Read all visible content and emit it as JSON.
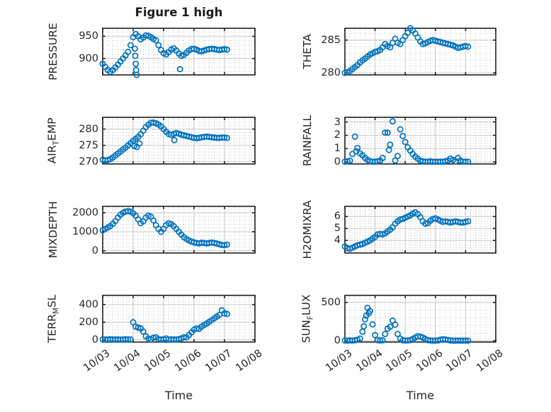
{
  "figure": {
    "title": "Figure 1 high",
    "xlabel": "Time",
    "background": "#ffffff",
    "marker_color": "#0072BD",
    "axis_color": "#202020",
    "major_grid_color": "#cfcfcf",
    "minor_grid_color": "#c9c9c9"
  },
  "x_axis": {
    "tick_labels": [
      "10/03",
      "10/04",
      "10/05",
      "10/06",
      "10/07",
      "10/08"
    ],
    "lim": [
      0,
      5
    ],
    "minor_divisions_per_day": 6
  },
  "chart_data": [
    {
      "id": "pressure",
      "name": "PRESSURE",
      "type": "scatter",
      "ylabel_parts": [
        {
          "text": "PRESSURE",
          "sub": false
        }
      ],
      "yticks": [
        900,
        950
      ],
      "ylim": [
        863,
        968
      ],
      "yminor_step": 10,
      "series": {
        "t_start": 0,
        "t_step": 0.0833,
        "values": [
          888,
          881,
          874,
          870,
          874,
          880,
          886,
          893,
          900,
          907,
          915,
          930,
          948,
          955,
          950,
          943,
          947,
          952,
          951,
          948,
          944,
          941,
          930,
          919,
          912,
          909,
          914,
          920,
          923,
          918,
          911,
          906,
          908,
          913,
          918,
          921,
          922,
          920,
          917,
          916,
          918,
          920,
          921,
          922,
          921,
          920,
          919,
          920,
          921,
          920
        ]
      },
      "outliers": [
        [
          1.055,
          922
        ],
        [
          1.07,
          906
        ],
        [
          1.085,
          888
        ],
        [
          1.1,
          874
        ],
        [
          1.115,
          863
        ],
        [
          2.54,
          876
        ]
      ]
    },
    {
      "id": "theta",
      "name": "THETA",
      "type": "scatter",
      "ylabel_parts": [
        {
          "text": "THETA",
          "sub": false
        }
      ],
      "yticks": [
        280,
        285
      ],
      "ylim": [
        279.7,
        286.8
      ],
      "yminor_step": 1,
      "series": {
        "t_start": 0,
        "t_step": 0.0833,
        "values": [
          280.0,
          280.1,
          280.3,
          280.6,
          280.9,
          281.2,
          281.6,
          281.9,
          282.2,
          282.5,
          282.8,
          283.0,
          283.2,
          283.3,
          283.5,
          283.9,
          284.4,
          284.1,
          283.9,
          284.6,
          285.2,
          284.6,
          284.4,
          285.0,
          285.6,
          286.1,
          286.8,
          286.5,
          286.0,
          285.4,
          284.8,
          284.4,
          284.5,
          284.7,
          284.9,
          285.0,
          284.9,
          284.8,
          284.7,
          284.6,
          284.5,
          284.4,
          284.3,
          284.2,
          284.0,
          283.8,
          283.9,
          284.0,
          284.1,
          284.0
        ]
      },
      "outliers": []
    },
    {
      "id": "air_temp",
      "name": "AIR_TEMP",
      "type": "scatter",
      "ylabel_parts": [
        {
          "text": "AIR",
          "sub": false
        },
        {
          "text": "T",
          "sub": true
        },
        {
          "text": "EMP",
          "sub": false
        }
      ],
      "yticks": [
        270,
        275,
        280
      ],
      "ylim": [
        269.3,
        283.6
      ],
      "yminor_step": 1,
      "series": {
        "t_start": 0,
        "t_step": 0.0833,
        "values": [
          270.6,
          270.4,
          270.5,
          270.8,
          271.3,
          271.9,
          272.5,
          273.1,
          273.7,
          274.3,
          275.0,
          275.7,
          276.4,
          277.0,
          277.6,
          278.4,
          279.5,
          280.6,
          281.3,
          281.9,
          282.0,
          281.8,
          281.4,
          280.8,
          280.0,
          279.2,
          278.5,
          278.2,
          278.5,
          278.8,
          278.6,
          278.3,
          278.1,
          277.9,
          277.7,
          277.5,
          277.3,
          277.2,
          277.3,
          277.5,
          277.6,
          277.7,
          277.6,
          277.5,
          277.4,
          277.3,
          277.3,
          277.4,
          277.4,
          277.3
        ]
      },
      "outliers": [
        [
          1.04,
          274.8
        ],
        [
          1.12,
          274.5
        ],
        [
          1.21,
          275.6
        ],
        [
          2.35,
          276.6
        ]
      ]
    },
    {
      "id": "rainfall",
      "name": "RAINFALL",
      "type": "scatter",
      "ylabel_parts": [
        {
          "text": "RAINFALL",
          "sub": false
        }
      ],
      "yticks": [
        0,
        1,
        2,
        3
      ],
      "ylim": [
        -0.15,
        3.35
      ],
      "yminor_step": 0.2,
      "series": {
        "t_start": 0,
        "t_step": 0.0833,
        "values": [
          0.02,
          0.05,
          0.1,
          0.6,
          1.9,
          1.05,
          0.65,
          0.5,
          0.3,
          0.15,
          0.05,
          0.02,
          0.02,
          0.05,
          0.1,
          0.3,
          2.2,
          2.2,
          1.3,
          3.05,
          0.1,
          0.45,
          2.45,
          1.95,
          1.5,
          1.1,
          0.85,
          0.6,
          0.4,
          0.25,
          0.1,
          0.05,
          0.02,
          0.02,
          0.05,
          0.02,
          0.02,
          0.02,
          0.02,
          0.02,
          0.05,
          0.1,
          0.25,
          0.15,
          0.05,
          0.3,
          0.1,
          0.02,
          0.02,
          0.02
        ]
      },
      "outliers": [
        [
          0.375,
          0.8
        ],
        [
          1.46,
          0.9
        ]
      ]
    },
    {
      "id": "mixdepth",
      "name": "MIXDEPTH",
      "type": "scatter",
      "ylabel_parts": [
        {
          "text": "MIXDEPTH",
          "sub": false
        }
      ],
      "yticks": [
        0,
        1000,
        2000
      ],
      "ylim": [
        -120,
        2340
      ],
      "yminor_step": 200,
      "series": {
        "t_start": 0,
        "t_step": 0.0833,
        "values": [
          1080,
          1150,
          1220,
          1300,
          1420,
          1560,
          1750,
          1900,
          2000,
          2060,
          2090,
          2060,
          1980,
          1850,
          1650,
          1450,
          1550,
          1750,
          1850,
          1800,
          1600,
          1350,
          1150,
          1000,
          1150,
          1350,
          1450,
          1400,
          1300,
          1150,
          1000,
          850,
          720,
          620,
          540,
          480,
          440,
          410,
          390,
          420,
          410,
          390,
          410,
          430,
          410,
          380,
          340,
          300,
          290,
          320
        ]
      },
      "outliers": []
    },
    {
      "id": "h2omixra",
      "name": "H2OMIXRA",
      "type": "scatter",
      "ylabel_parts": [
        {
          "text": "H2OMIXRA",
          "sub": false
        }
      ],
      "yticks": [
        4,
        5,
        6
      ],
      "ylim": [
        2.95,
        6.85
      ],
      "yminor_step": 0.2,
      "series": {
        "t_start": 0,
        "t_step": 0.0833,
        "values": [
          3.5,
          3.35,
          3.3,
          3.4,
          3.5,
          3.6,
          3.65,
          3.7,
          3.8,
          3.9,
          4.0,
          4.15,
          4.3,
          4.5,
          4.55,
          4.5,
          4.6,
          4.75,
          4.9,
          5.1,
          5.4,
          5.6,
          5.75,
          5.8,
          5.9,
          6.0,
          6.1,
          6.25,
          6.35,
          6.2,
          5.95,
          5.6,
          5.4,
          5.45,
          5.65,
          5.8,
          5.85,
          5.75,
          5.65,
          5.55,
          5.6,
          5.55,
          5.5,
          5.55,
          5.6,
          5.55,
          5.5,
          5.5,
          5.55,
          5.6
        ]
      },
      "outliers": []
    },
    {
      "id": "terr_msl",
      "name": "TERR_MSL",
      "type": "scatter",
      "ylabel_parts": [
        {
          "text": "TERR",
          "sub": false
        },
        {
          "text": "M",
          "sub": true
        },
        {
          "text": "SL",
          "sub": false
        }
      ],
      "yticks": [
        0,
        200,
        400
      ],
      "ylim": [
        -25,
        505
      ],
      "yminor_step": 40,
      "series": {
        "t_start": 0,
        "t_step": 0.0833,
        "values": [
          3,
          5,
          2,
          6,
          4,
          3,
          5,
          2,
          4,
          6,
          3,
          5,
          200,
          150,
          140,
          130,
          95,
          40,
          15,
          5,
          25,
          30,
          8,
          4,
          6,
          15,
          3,
          5,
          4,
          3,
          8,
          15,
          30,
          28,
          55,
          85,
          115,
          130,
          125,
          150,
          170,
          185,
          205,
          225,
          245,
          265,
          285,
          335,
          300,
          295
        ]
      },
      "outliers": []
    },
    {
      "id": "sun_flux",
      "name": "SUN_FLUX",
      "type": "scatter",
      "ylabel_parts": [
        {
          "text": "SUN",
          "sub": false
        },
        {
          "text": "F",
          "sub": true
        },
        {
          "text": "LUX",
          "sub": false
        }
      ],
      "yticks": [
        0,
        500
      ],
      "ylim": [
        -15,
        592
      ],
      "yminor_step": 100,
      "series": {
        "t_start": 0,
        "t_step": 0.0833,
        "values": [
          5,
          3,
          6,
          4,
          8,
          15,
          30,
          120,
          280,
          430,
          390,
          215,
          75,
          10,
          5,
          8,
          90,
          160,
          185,
          265,
          210,
          90,
          30,
          8,
          5,
          5,
          10,
          25,
          45,
          60,
          55,
          45,
          25,
          10,
          5,
          3,
          3,
          5,
          15,
          22,
          18,
          12,
          5,
          3,
          3,
          3,
          3,
          3,
          3,
          3
        ]
      },
      "outliers": [
        [
          0.63,
          190
        ],
        [
          0.71,
          330
        ],
        [
          0.79,
          360
        ]
      ]
    }
  ]
}
